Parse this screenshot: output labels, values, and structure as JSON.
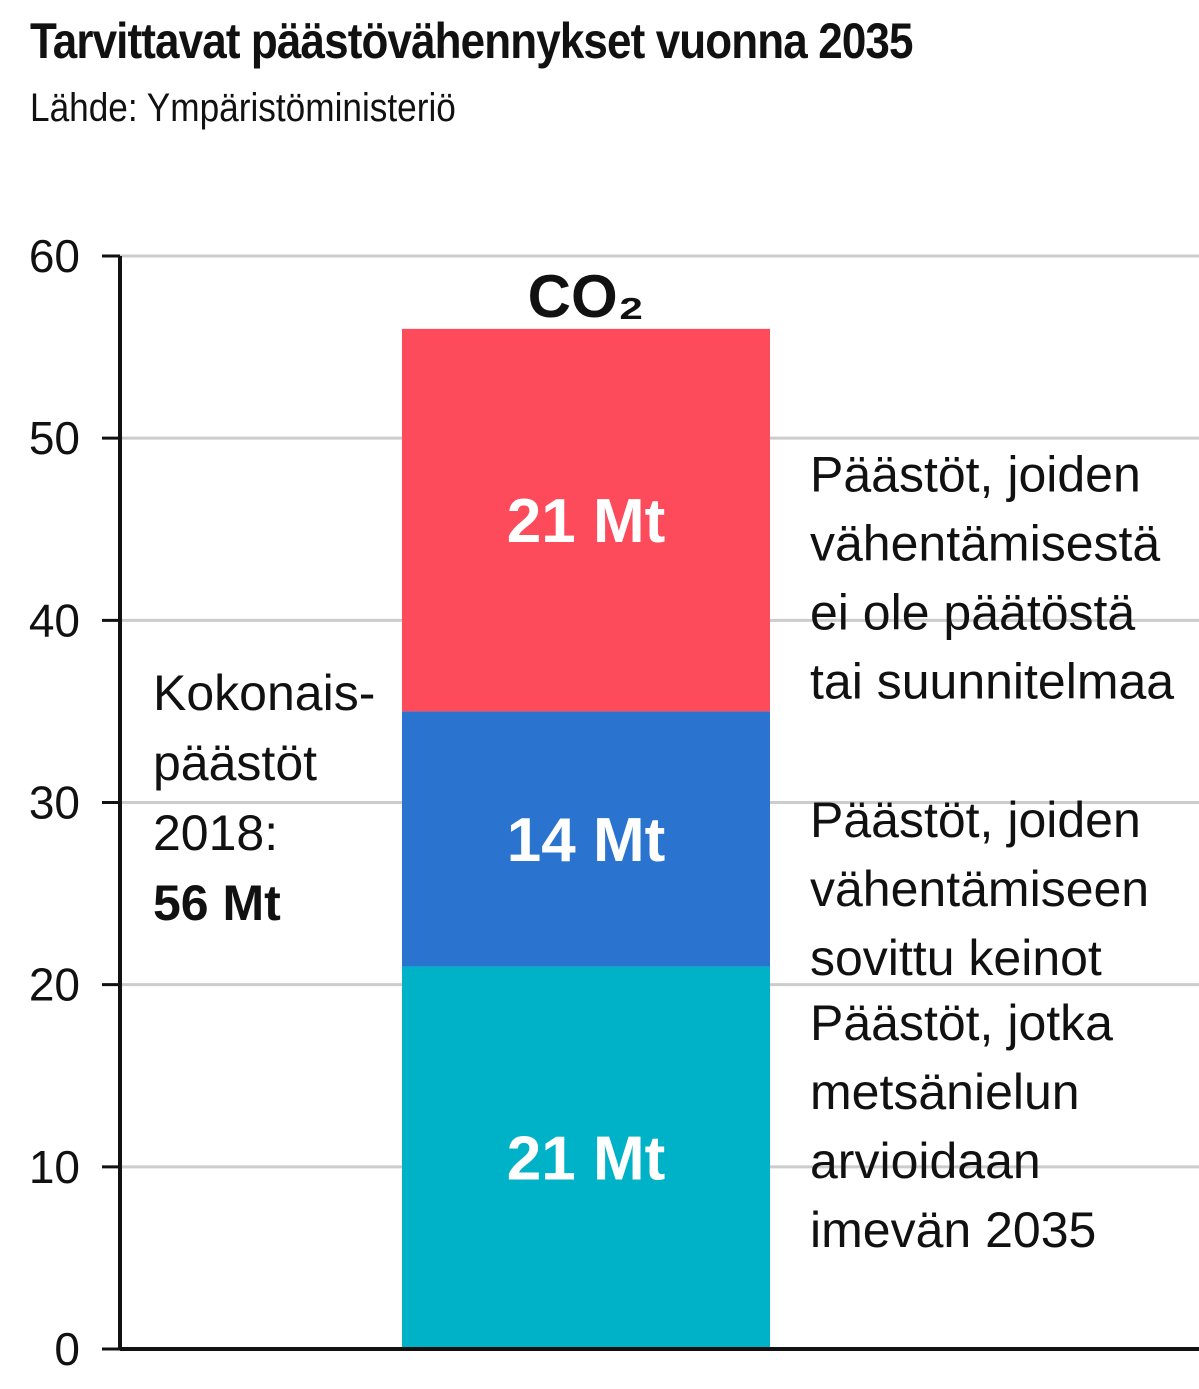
{
  "header": {
    "title": "Tarvittavat päästövähennykset vuonna 2035",
    "subtitle": "Lähde: Ympäristöministeriö"
  },
  "chart_data": {
    "type": "bar",
    "stacked": true,
    "title": "Tarvittavat päästövähennykset vuonna 2035",
    "subtitle": "Lähde: Ympäristöministeriö",
    "categories": [
      "CO₂"
    ],
    "ylim": [
      0,
      60
    ],
    "yticks": [
      0,
      10,
      20,
      30,
      40,
      50,
      60
    ],
    "grid": true,
    "series": [
      {
        "value": 21,
        "value_label": "21 Mt",
        "color": "#00b2c8",
        "annotation": [
          "Päästöt, jotka",
          "metsänielun",
          "arvioidaan",
          "imevän 2035"
        ]
      },
      {
        "value": 14,
        "value_label": "14 Mt",
        "color": "#2a74d0",
        "annotation": [
          "Päästöt, joiden",
          "vähentämiseen",
          "sovittu keinot"
        ]
      },
      {
        "value": 21,
        "value_label": "21 Mt",
        "color": "#fe4b5b",
        "annotation": [
          "Päästöt, joiden",
          "vähentämisestä",
          "ei ole päätöstä",
          "tai suunnitelmaa"
        ]
      }
    ],
    "total_note": {
      "lines": [
        "Kokonais-",
        "päästöt",
        "2018:"
      ],
      "bold_line": "56 Mt"
    },
    "colors": {
      "axis": "#111111",
      "grid": "#cccccc"
    }
  }
}
